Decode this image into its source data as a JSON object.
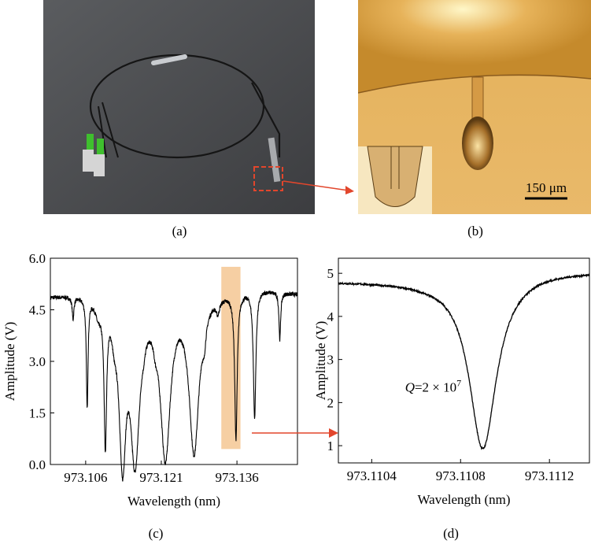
{
  "panels": {
    "a": {
      "label": "(a)"
    },
    "b": {
      "label": "(b)",
      "scale_bar": "150 μm"
    },
    "c": {
      "label": "(c)"
    },
    "d": {
      "label": "(d)"
    }
  },
  "chart_data": [
    {
      "id": "c",
      "type": "line",
      "xlabel": "Wavelength (nm)",
      "ylabel": "Amplitude (V)",
      "xlim": [
        973.099,
        973.148
      ],
      "ylim": [
        0.0,
        6.0
      ],
      "xticks": [
        973.106,
        973.121,
        973.136
      ],
      "xtick_labels": [
        "973.106",
        "973.121",
        "973.136"
      ],
      "yticks": [
        0.0,
        1.5,
        3.0,
        4.5,
        6.0
      ],
      "ytick_labels": [
        "0.0",
        "1.5",
        "3.0",
        "4.5",
        "6.0"
      ],
      "baseline": [
        [
          973.099,
          4.92
        ],
        [
          973.103,
          4.97
        ],
        [
          973.106,
          5.02
        ],
        [
          973.11,
          5.05
        ],
        [
          973.114,
          5.0
        ],
        [
          973.118,
          4.98
        ],
        [
          973.121,
          5.05
        ],
        [
          973.125,
          5.1
        ],
        [
          973.129,
          5.15
        ],
        [
          973.133,
          5.1
        ],
        [
          973.136,
          5.12
        ],
        [
          973.14,
          5.18
        ],
        [
          973.144,
          5.08
        ],
        [
          973.148,
          4.98
        ]
      ],
      "dips": [
        {
          "x": 973.1035,
          "min": 4.35,
          "width": 0.0002
        },
        {
          "x": 973.1063,
          "min": 1.85,
          "width": 0.0002
        },
        {
          "x": 973.1085,
          "min": 4.6,
          "width": 0.0007
        },
        {
          "x": 973.1099,
          "min": 0.95,
          "width": 0.0003
        },
        {
          "x": 973.1117,
          "min": 4.4,
          "width": 0.0006
        },
        {
          "x": 973.1133,
          "min": 0.55,
          "width": 0.0008
        },
        {
          "x": 973.1158,
          "min": 0.45,
          "width": 0.0011
        },
        {
          "x": 973.1175,
          "min": 4.75,
          "width": 0.0004
        },
        {
          "x": 973.1198,
          "min": 4.65,
          "width": 0.0005
        },
        {
          "x": 973.1218,
          "min": 0.45,
          "width": 0.0012
        },
        {
          "x": 973.1275,
          "min": 0.55,
          "width": 0.0012
        },
        {
          "x": 973.1295,
          "min": 4.5,
          "width": 0.0004
        },
        {
          "x": 973.1322,
          "min": 4.75,
          "width": 0.0004
        },
        {
          "x": 973.1358,
          "min": 0.9,
          "width": 0.0003
        },
        {
          "x": 973.1395,
          "min": 1.45,
          "width": 0.0003
        },
        {
          "x": 973.1445,
          "min": 3.7,
          "width": 0.0002
        }
      ],
      "highlight": {
        "xmin": 973.1329,
        "xmax": 973.1367,
        "color": "#f6cfa3"
      }
    },
    {
      "id": "d",
      "type": "line",
      "xlabel": "Wavelength (nm)",
      "ylabel": "Amplitude (V)",
      "xlim": [
        973.11025,
        973.11138
      ],
      "ylim": [
        0.6,
        5.35
      ],
      "xticks": [
        973.1104,
        973.1108,
        973.1112
      ],
      "xtick_labels": [
        "973.1104",
        "973.1108",
        "973.1112"
      ],
      "yticks": [
        1,
        2,
        3,
        4,
        5
      ],
      "ytick_labels": [
        "1",
        "2",
        "3",
        "4",
        "5"
      ],
      "annotation": {
        "prefix": "Q",
        "text": "=2 × 10",
        "sup": "7"
      },
      "baseline_left": 4.82,
      "baseline_right": 5.06,
      "dip": {
        "x": 973.1109,
        "min": 0.93,
        "width": 7.5e-05
      }
    }
  ]
}
